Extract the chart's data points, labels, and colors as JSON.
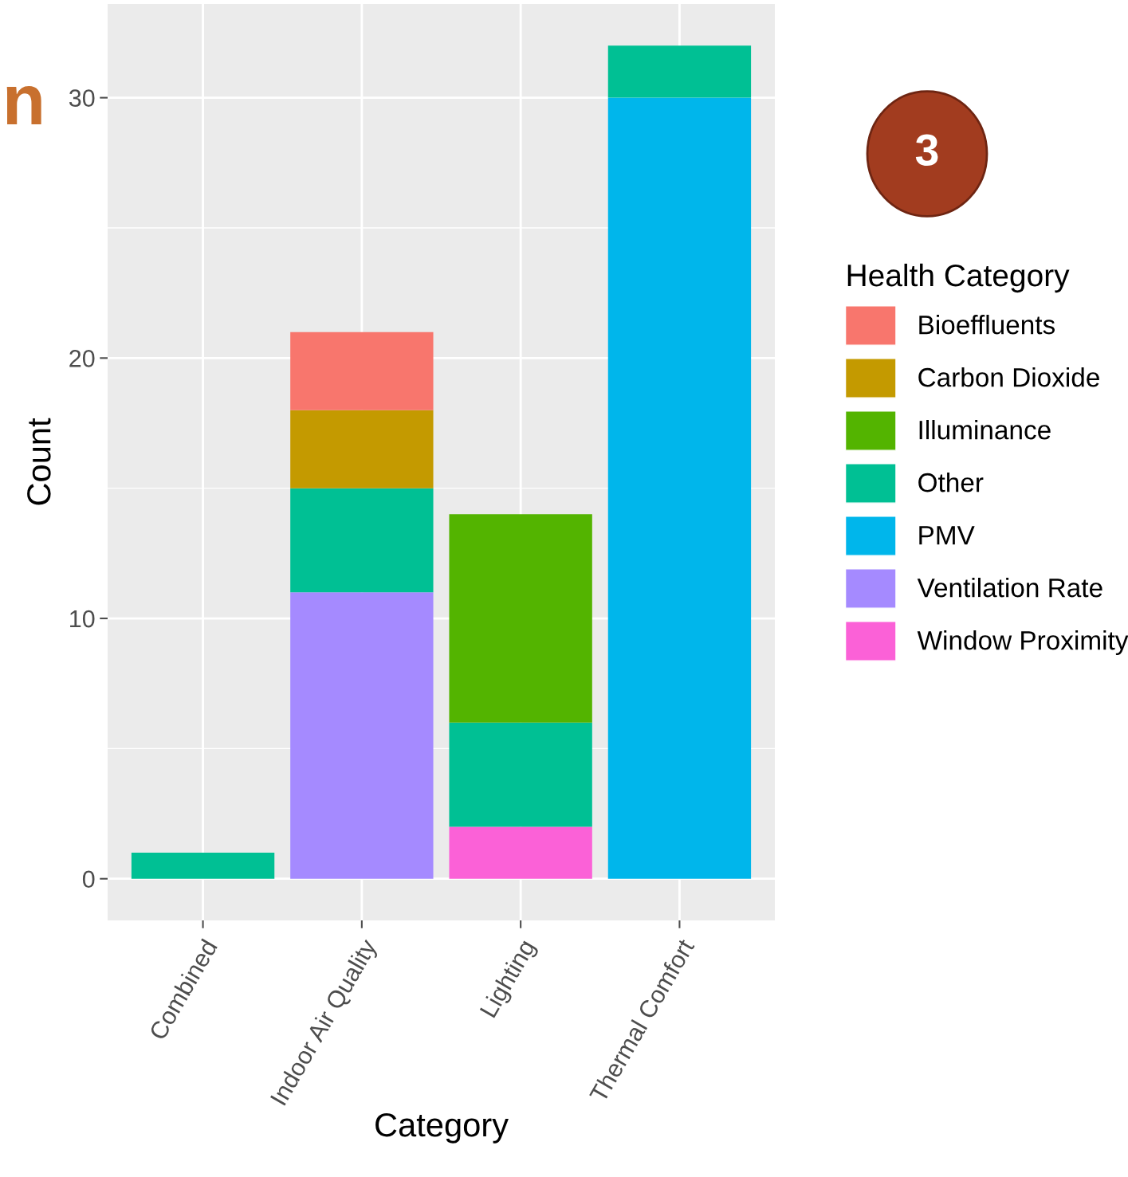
{
  "chart_data": {
    "type": "bar",
    "stacked": true,
    "xlabel": "Category",
    "ylabel": "Count",
    "legend_title": "Health Category",
    "categories": [
      "Combined",
      "Indoor Air Quality",
      "Lighting",
      "Thermal Comfort"
    ],
    "series": [
      {
        "name": "Window Proximity",
        "color": "#fb61d7",
        "values": [
          0,
          0,
          2,
          0
        ]
      },
      {
        "name": "Ventilation Rate",
        "color": "#a58aff",
        "values": [
          0,
          11,
          0,
          0
        ]
      },
      {
        "name": "PMV",
        "color": "#00b6eb",
        "values": [
          0,
          0,
          0,
          30
        ]
      },
      {
        "name": "Other",
        "color": "#00c094",
        "values": [
          1,
          4,
          4,
          2
        ]
      },
      {
        "name": "Illuminance",
        "color": "#53b400",
        "values": [
          0,
          0,
          8,
          0
        ]
      },
      {
        "name": "Carbon Dioxide",
        "color": "#c49a00",
        "values": [
          0,
          3,
          0,
          0
        ]
      },
      {
        "name": "Bioeffluents",
        "color": "#f8766d",
        "values": [
          0,
          3,
          0,
          0
        ]
      }
    ],
    "ylim": [
      -1.6,
      33.6
    ],
    "yticks": [
      0,
      10,
      20,
      30
    ],
    "grid": true,
    "legend": "right",
    "annotations": [
      "n",
      "3"
    ]
  }
}
